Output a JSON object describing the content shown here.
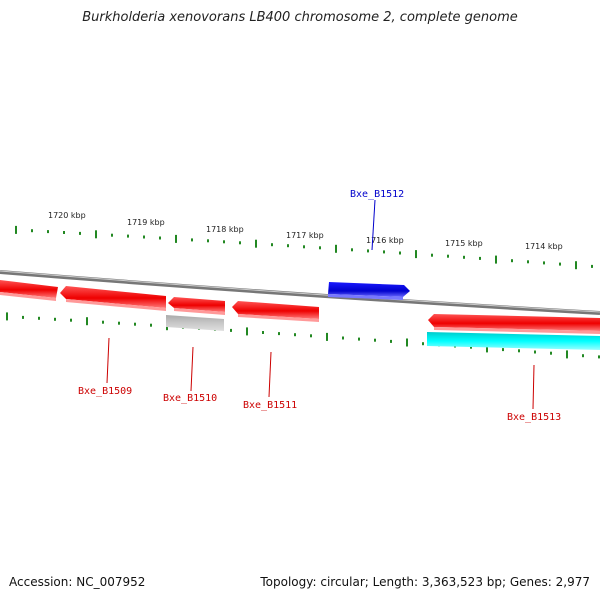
{
  "title": "Burkholderia xenovorans LB400 chromosome 2, complete genome",
  "kbp_labels": [
    {
      "text": "1720 kbp"
    },
    {
      "text": "1719 kbp"
    },
    {
      "text": "1718 kbp"
    },
    {
      "text": "1717 kbp"
    },
    {
      "text": "1716 kbp"
    },
    {
      "text": "1715 kbp"
    },
    {
      "text": "1714 kbp"
    }
  ],
  "genes": [
    {
      "label": "Bxe_B1509",
      "strand": "reverse",
      "color": "#ee0000"
    },
    {
      "label": "Bxe_B1510",
      "strand": "reverse",
      "color": "#ee0000"
    },
    {
      "label": "Bxe_B1511",
      "strand": "reverse",
      "color": "#ee0000"
    },
    {
      "label": "Bxe_B1512",
      "strand": "forward",
      "color": "#0000ee"
    },
    {
      "label": "Bxe_B1513",
      "strand": "reverse",
      "color": "#ee0000"
    }
  ],
  "colors": {
    "backbone": "#888888",
    "tick": "#228822",
    "label_text": "#222222"
  },
  "footer": {
    "accession": "Accession: NC_007952",
    "summary": "Topology: circular; Length: 3,363,523 bp; Genes: 2,977"
  }
}
